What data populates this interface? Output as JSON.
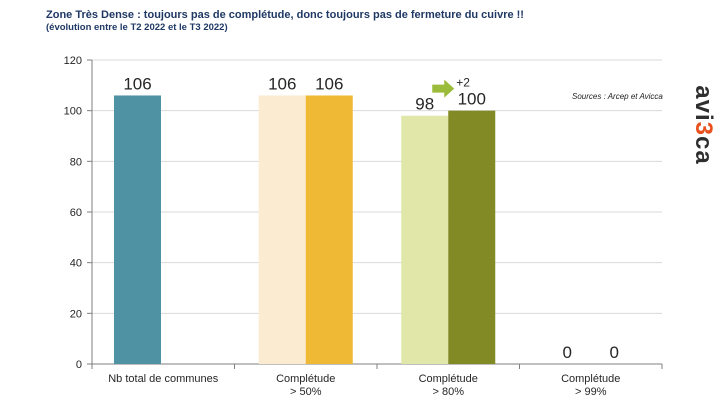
{
  "title": "Zone Très Dense : toujours pas de complétude, donc toujours pas de fermeture du cuivre !!",
  "subtitle": "(évolution entre le T2 2022 et le T3 2022)",
  "sources": "Sources : Arcep et Avicca",
  "logo": {
    "part1": "avi",
    "part2": "3",
    "part3": "ca"
  },
  "colors": {
    "axis": "#7f7f7f",
    "grid": "#d9d9d9",
    "text": "#262626",
    "arrow": "#9bbb3a"
  },
  "chart_data": {
    "type": "bar",
    "ylim": [
      0,
      120
    ],
    "yticks": [
      0,
      20,
      40,
      60,
      80,
      100,
      120
    ],
    "grid": true,
    "categories": [
      {
        "label": [
          "Nb total de communes"
        ]
      },
      {
        "label": [
          "Complétude",
          "> 50%"
        ]
      },
      {
        "label": [
          "Complétude",
          "> 80%"
        ]
      },
      {
        "label": [
          "Complétude",
          "> 99%"
        ]
      }
    ],
    "bars": [
      {
        "category": 0,
        "slot": "single",
        "value": 106,
        "label": "106",
        "color": "#4e92a3"
      },
      {
        "category": 1,
        "slot": "left",
        "value": 106,
        "label": "106",
        "color": "#fbebd0"
      },
      {
        "category": 1,
        "slot": "right",
        "value": 106,
        "label": "106",
        "color": "#f0b935"
      },
      {
        "category": 2,
        "slot": "left",
        "value": 98,
        "label": "98",
        "color": "#e1e7a8"
      },
      {
        "category": 2,
        "slot": "right",
        "value": 100,
        "label": "100",
        "color": "#818a25"
      },
      {
        "category": 3,
        "slot": "left",
        "value": 0,
        "label": "0",
        "color": "#e1e7a8"
      },
      {
        "category": 3,
        "slot": "right",
        "value": 0,
        "label": "0",
        "color": "#818a25"
      }
    ],
    "annotation": {
      "text": "+2",
      "category": 2
    }
  }
}
